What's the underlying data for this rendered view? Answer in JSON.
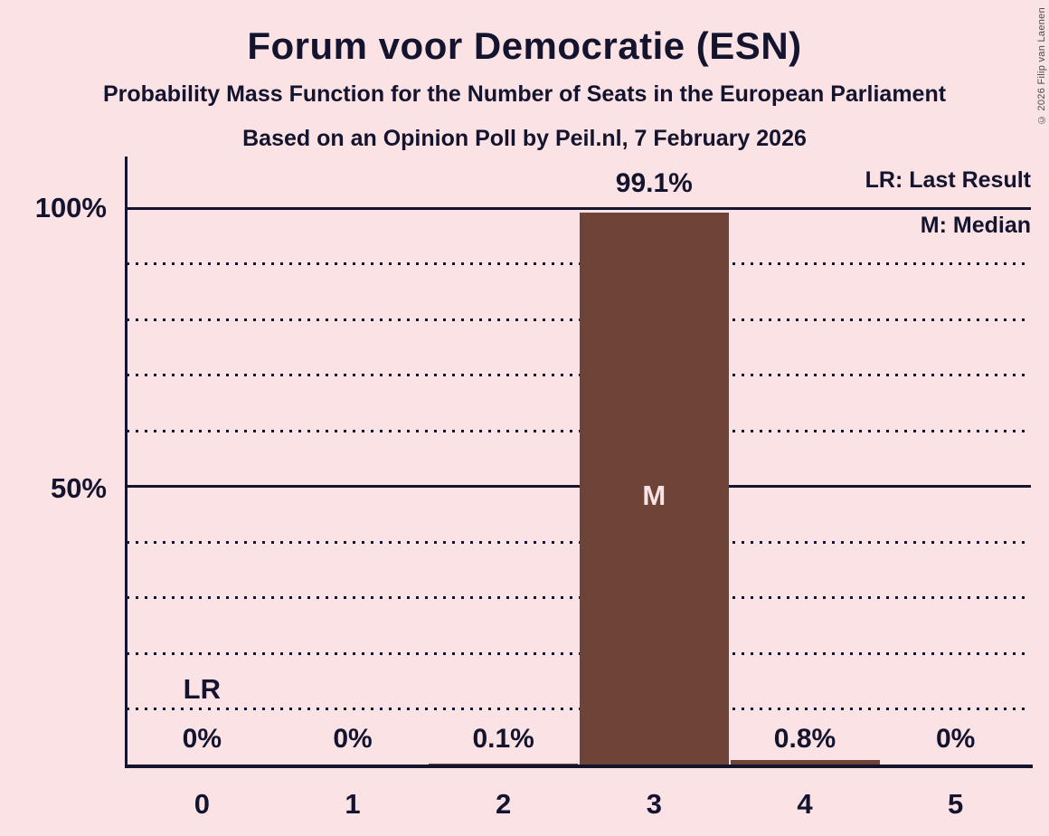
{
  "title": "Forum voor Democratie (ESN)",
  "subtitle": "Probability Mass Function for the Number of Seats in the European Parliament",
  "source_line": "Based on an Opinion Poll by Peil.nl, 7 February 2026",
  "copyright": "© 2026 Filip van Laenen",
  "legend": {
    "lr_label": "LR: Last Result",
    "m_label": "M: Median"
  },
  "colors": {
    "background": "#fae2e5",
    "text": "#14142e",
    "bar": "#6f4438",
    "label_on_bar": "#fae2e5"
  },
  "chart_data": {
    "type": "bar",
    "title": "Forum voor Democratie (ESN)",
    "categories": [
      "0",
      "1",
      "2",
      "3",
      "4",
      "5"
    ],
    "values": [
      0,
      0,
      0.1,
      99.1,
      0.8,
      0
    ],
    "value_labels": [
      "0%",
      "0%",
      "0.1%",
      "99.1%",
      "0.8%",
      "0%"
    ],
    "xlabel": "",
    "ylabel": "",
    "ylim": [
      0,
      100
    ],
    "gridline_step": 10,
    "solid_gridlines": [
      50,
      100
    ],
    "yticks": [
      {
        "value": 100,
        "label": "100%"
      },
      {
        "value": 50,
        "label": "50%"
      }
    ],
    "median_category": 3,
    "median_marker": "M",
    "last_result_category": 0,
    "last_result_marker": "LR",
    "legend_position": "top-right",
    "grid": true
  }
}
